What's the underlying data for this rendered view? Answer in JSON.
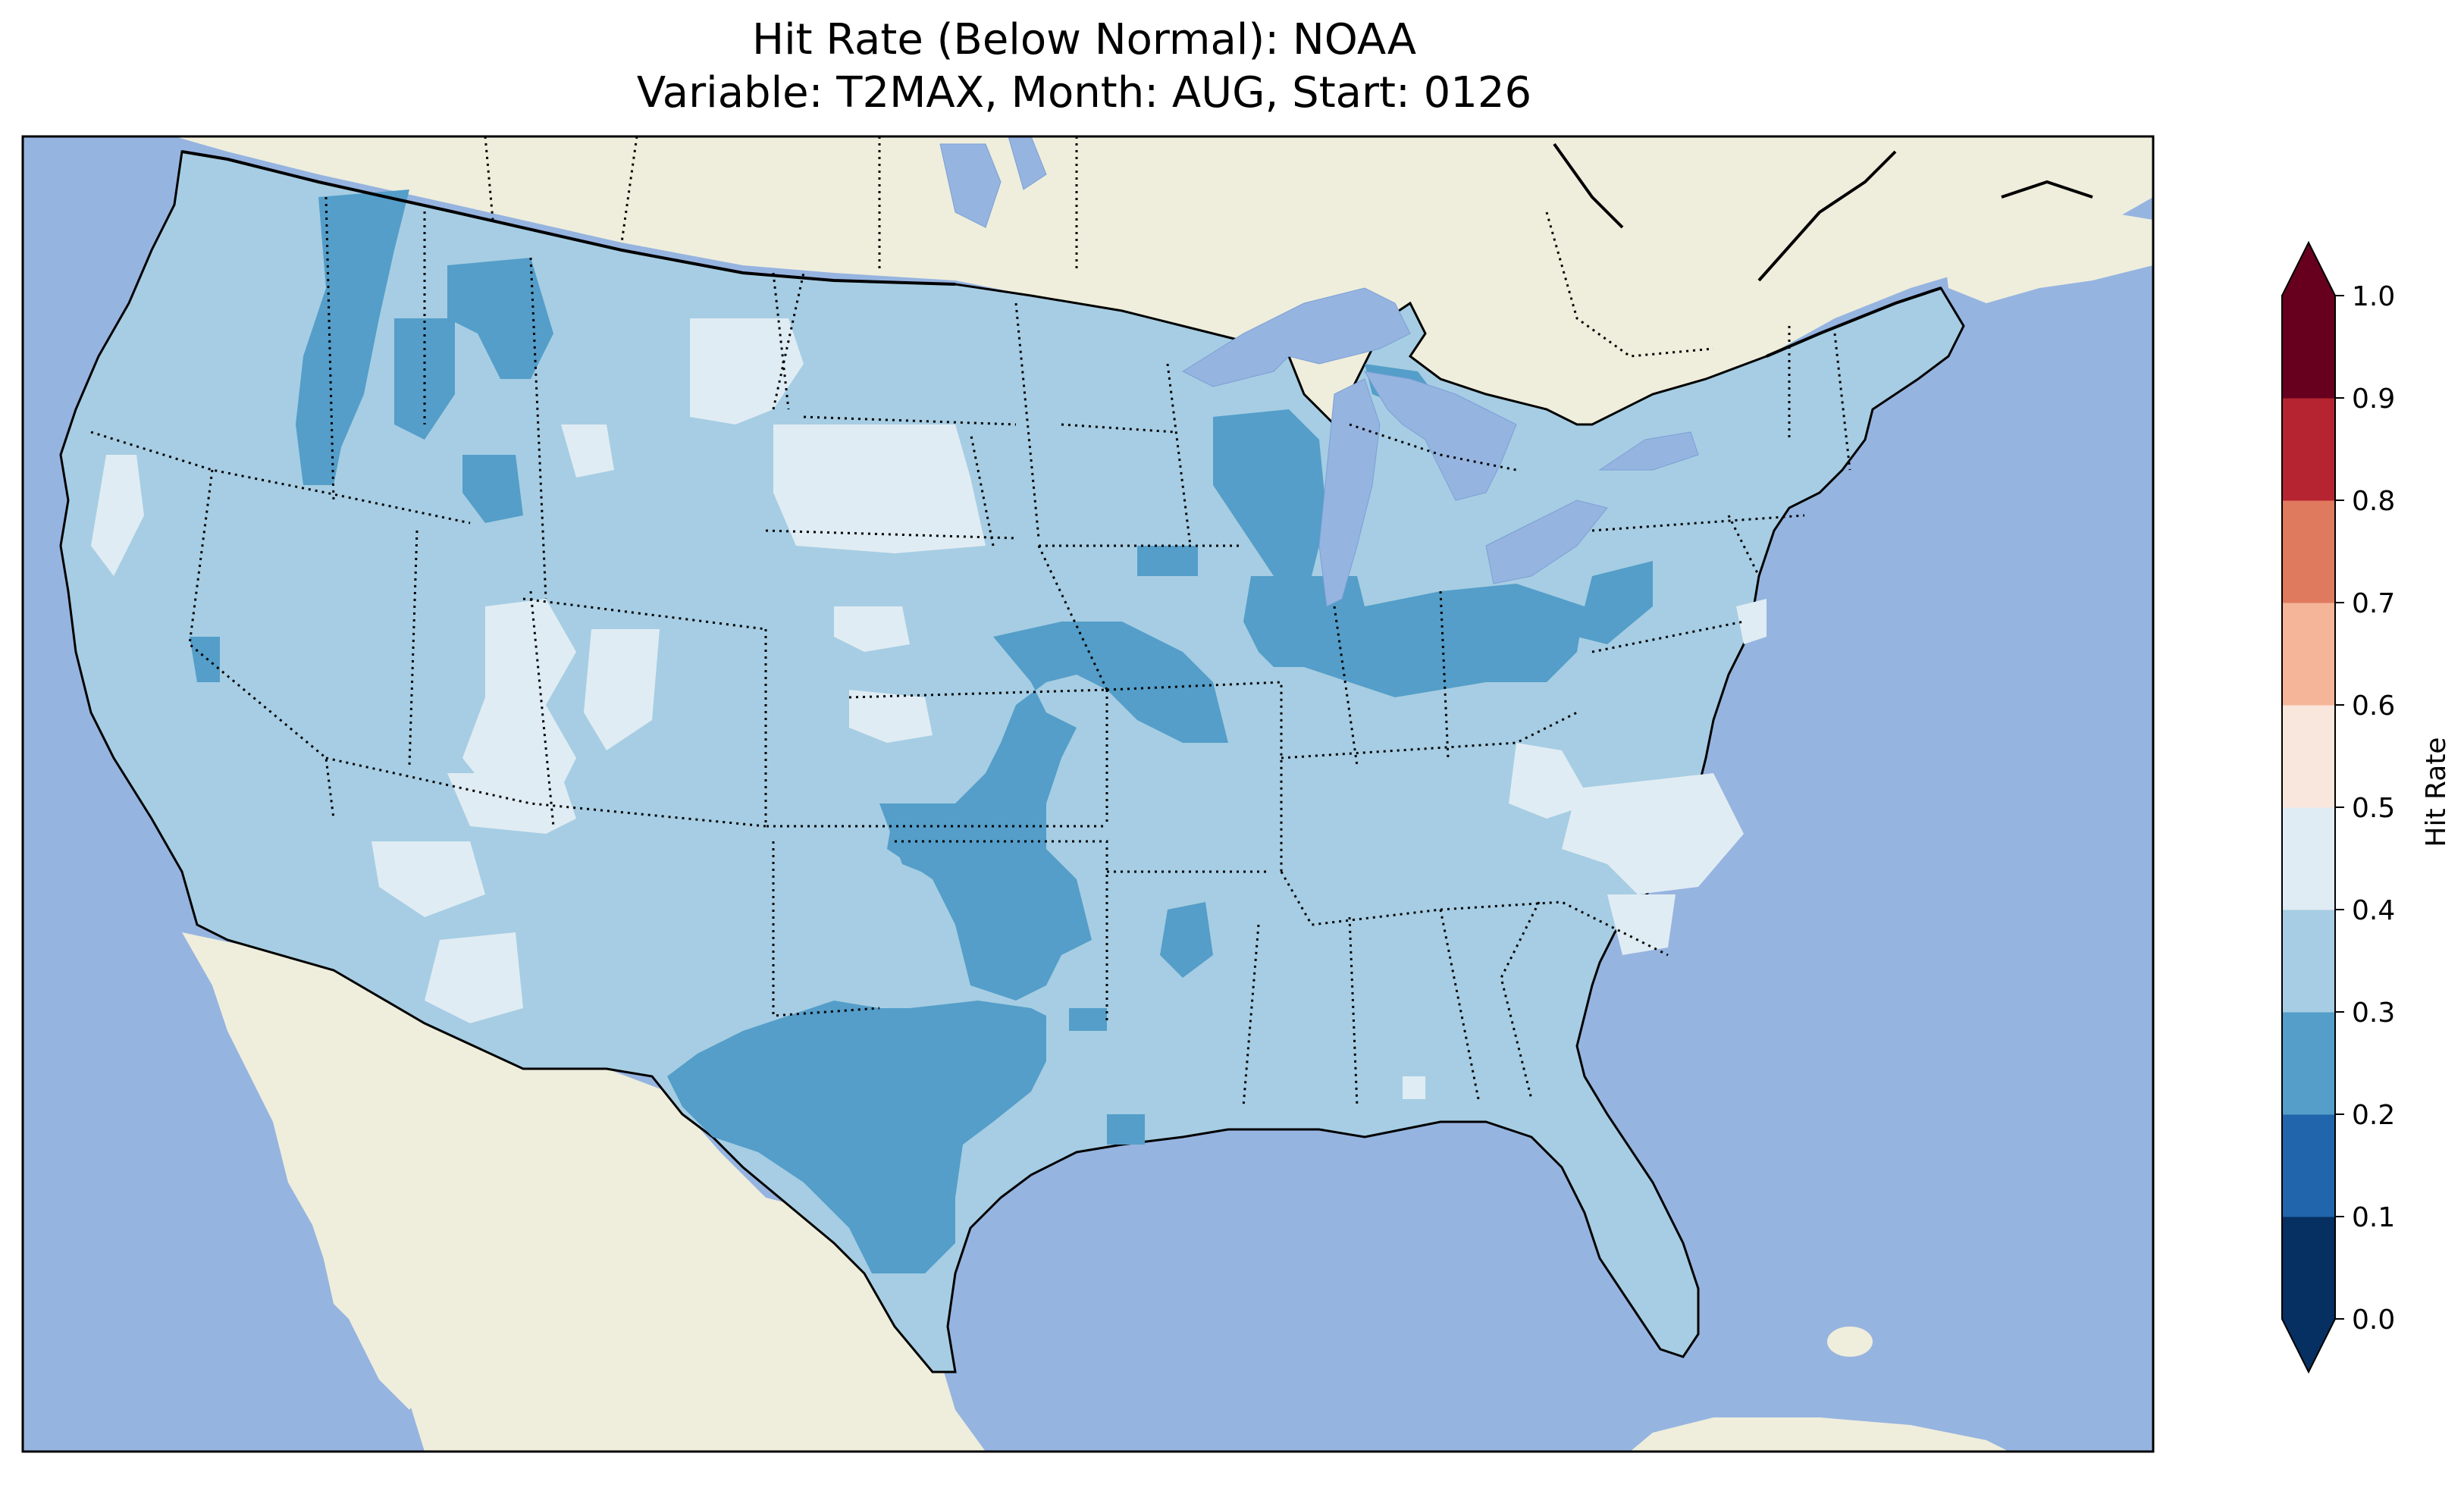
{
  "title": {
    "line1": "Hit Rate (Below Normal): NOAA",
    "line2": "Variable: T2MAX, Month: AUG, Start: 0126"
  },
  "colors": {
    "ocean": "#96b4e0",
    "land": "#efeedc",
    "lakes": "#96b4e0"
  },
  "colorbar": {
    "label": "Hit Rate",
    "ticks": [
      "0.0",
      "0.1",
      "0.2",
      "0.3",
      "0.4",
      "0.5",
      "0.6",
      "0.7",
      "0.8",
      "0.9",
      "1.0"
    ],
    "bins": [
      {
        "range": [
          0.0,
          0.1
        ],
        "color": "#053061"
      },
      {
        "range": [
          0.1,
          0.2
        ],
        "color": "#2166ac"
      },
      {
        "range": [
          0.2,
          0.3
        ],
        "color": "#549ec9"
      },
      {
        "range": [
          0.3,
          0.4
        ],
        "color": "#a6cde3"
      },
      {
        "range": [
          0.4,
          0.5
        ],
        "color": "#e0ecf3"
      },
      {
        "range": [
          0.5,
          0.6
        ],
        "color": "#f9e6dc"
      },
      {
        "range": [
          0.6,
          0.7
        ],
        "color": "#f5b598"
      },
      {
        "range": [
          0.7,
          0.8
        ],
        "color": "#e07a5f"
      },
      {
        "range": [
          0.8,
          0.9
        ],
        "color": "#b52430"
      },
      {
        "range": [
          0.9,
          1.0
        ],
        "color": "#67001f"
      }
    ],
    "extend": "both"
  }
}
